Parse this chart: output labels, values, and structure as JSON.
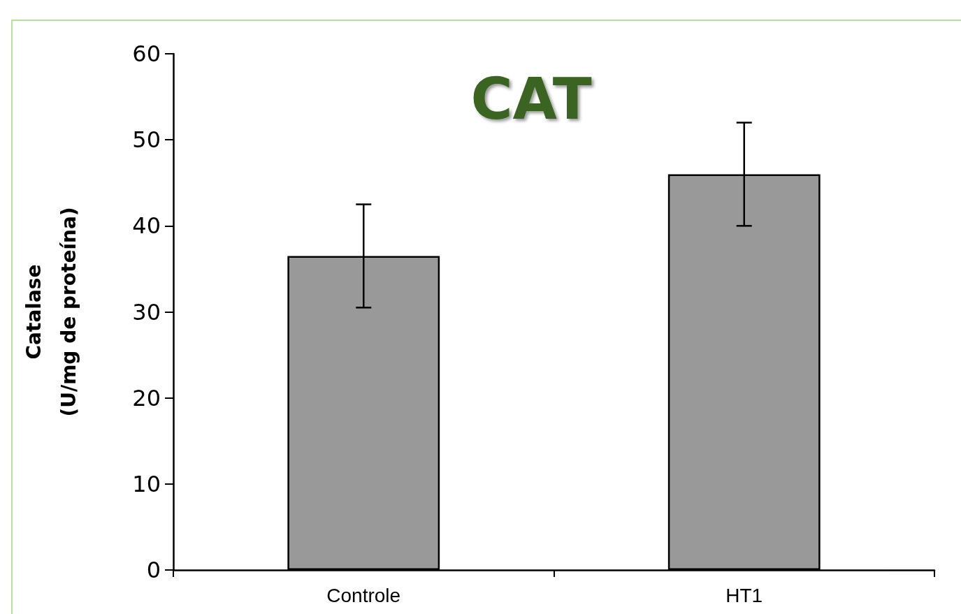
{
  "chart_data": {
    "type": "bar",
    "title": "CAT",
    "ylabel": "Catalase\n(U/mg de proteína)",
    "categories": [
      "Controle",
      "HT1"
    ],
    "series": [
      {
        "color": "#999999",
        "values": [
          36.5,
          46
        ],
        "errors": [
          6,
          6
        ]
      }
    ],
    "ylim": [
      0,
      60
    ],
    "yticks": [
      0,
      10,
      20,
      30,
      40,
      50,
      60
    ],
    "grid": false
  }
}
